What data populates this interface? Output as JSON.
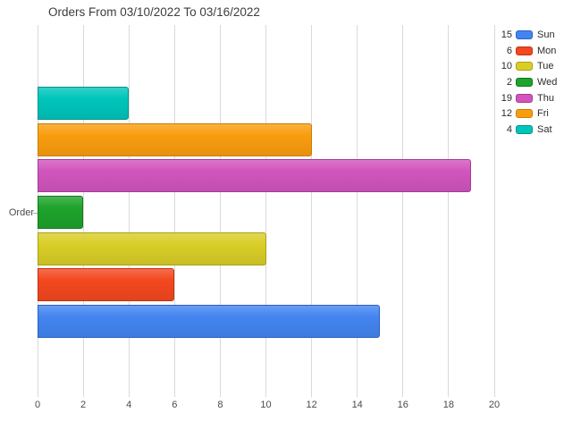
{
  "chart_data": {
    "type": "bar",
    "orientation": "horizontal",
    "title": "Orders From 03/10/2022 To 03/16/2022",
    "category_axis_label": "Order",
    "categories": [
      "Order"
    ],
    "series": [
      {
        "name": "Sun",
        "value": 15,
        "color": "#4385f0",
        "border_color": "#2e5fc2"
      },
      {
        "name": "Mon",
        "value": 6,
        "color": "#f4481f",
        "border_color": "#c23311"
      },
      {
        "name": "Tue",
        "value": 10,
        "color": "#d9ce27",
        "border_color": "#a9a114"
      },
      {
        "name": "Wed",
        "value": 2,
        "color": "#1ea32c",
        "border_color": "#107a1c"
      },
      {
        "name": "Thu",
        "value": 19,
        "color": "#d155bd",
        "border_color": "#a53b96"
      },
      {
        "name": "Fri",
        "value": 12,
        "color": "#f99d0f",
        "border_color": "#c87e03"
      },
      {
        "name": "Sat",
        "value": 4,
        "color": "#00c5bb",
        "border_color": "#00958c"
      }
    ],
    "bar_order_top_to_bottom": [
      "Sat",
      "Fri",
      "Thu",
      "Wed",
      "Tue",
      "Mon",
      "Sun"
    ],
    "xlim": [
      0,
      20
    ],
    "x_ticks": [
      "0",
      "2",
      "4",
      "6",
      "8",
      "10",
      "12",
      "14",
      "16",
      "18",
      "20"
    ],
    "grid": "vertical-only",
    "grid_color": "#d9d9d9",
    "legend_position": "top-right",
    "legend": [
      {
        "value": "15",
        "label": "Sun"
      },
      {
        "value": "6",
        "label": "Mon"
      },
      {
        "value": "10",
        "label": "Tue"
      },
      {
        "value": "2",
        "label": "Wed"
      },
      {
        "value": "19",
        "label": "Thu"
      },
      {
        "value": "12",
        "label": "Fri"
      },
      {
        "value": "4",
        "label": "Sat"
      }
    ]
  }
}
